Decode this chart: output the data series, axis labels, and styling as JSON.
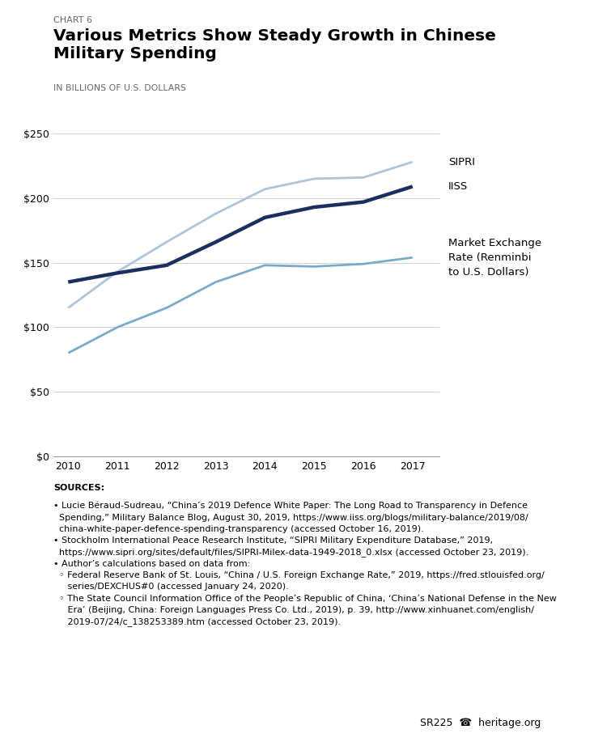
{
  "chart_label": "CHART 6",
  "title_line1": "Various Metrics Show Steady Growth in Chinese",
  "title_line2": "Military Spending",
  "ylabel": "IN BILLIONS OF U.S. DOLLARS",
  "years": [
    2010,
    2011,
    2012,
    2013,
    2014,
    2015,
    2016,
    2017
  ],
  "sipri": [
    115,
    143,
    166,
    188,
    207,
    215,
    216,
    228
  ],
  "iiss": [
    135,
    142,
    148,
    166,
    185,
    193,
    197,
    209
  ],
  "market_exchange": [
    80,
    100,
    115,
    135,
    148,
    147,
    149,
    154
  ],
  "sipri_color": "#b0c4d8",
  "iiss_color": "#1b2f5e",
  "market_color": "#7aaac8",
  "sipri_lw": 2.0,
  "iiss_lw": 3.2,
  "market_lw": 2.0,
  "ylim_min": 0,
  "ylim_max": 250,
  "yticks": [
    0,
    50,
    100,
    150,
    200,
    250
  ],
  "ytick_labels": [
    "$0",
    "$50",
    "$100",
    "$150",
    "$200",
    "$250"
  ],
  "label_sipri": "SIPRI",
  "label_iiss": "IISS",
  "label_market": "Market Exchange\nRate (Renminbi\nto U.S. Dollars)",
  "sources_header": "SOURCES:",
  "sources_body": "• Lucie Béraud-Sudreau, “China’s 2019 Defence White Paper: The Long Road to Transparency in Defence\n  Spending,” Military Balance Blog, August 30, 2019, https://www.iiss.org/blogs/military-balance/2019/08/\n  china-white-paper-defence-spending-transparency (accessed October 16, 2019).\n• Stockholm International Peace Research Institute, “SIPRI Military Expenditure Database,” 2019,\n  https://www.sipri.org/sites/default/files/SIPRI-Milex-data-1949-2018_0.xlsx (accessed October 23, 2019).\n• Author’s calculations based on data from:\n  ◦ Federal Reserve Bank of St. Louis, “China / U.S. Foreign Exchange Rate,” 2019, https://fred.stlouisfed.org/\n     series/DEXCHUS#0 (accessed January 24, 2020).\n  ◦ The State Council Information Office of the People’s Republic of China, ‘China’s National Defense in the New\n     Era’ (Beijing, China: Foreign Languages Press Co. Ltd., 2019), p. 39, http://www.xinhuanet.com/english/\n     2019-07/24/c_138253389.htm (accessed October 23, 2019).",
  "footer": "SR225    heritage.org",
  "bg_color": "#ffffff",
  "grid_color": "#d0d0d0",
  "axis_color": "#999999",
  "text_color": "#000000",
  "label_color": "#666666"
}
